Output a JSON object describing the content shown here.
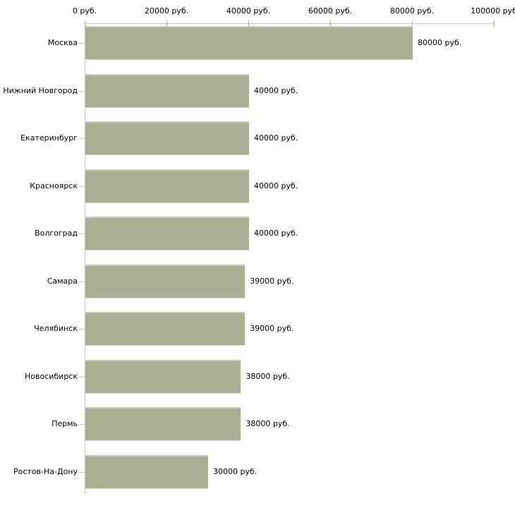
{
  "chart_data": {
    "type": "bar",
    "orientation": "horizontal",
    "title": "",
    "xlabel": "",
    "ylabel": "",
    "categories": [
      "Москва",
      "Нижний Новгород",
      "Екатеринбург",
      "Красноярск",
      "Волгоград",
      "Самара",
      "Челябинск",
      "Новосибирск",
      "Пермь",
      "Ростов-На-Дону"
    ],
    "values": [
      80000,
      40000,
      40000,
      40000,
      40000,
      39000,
      39000,
      38000,
      38000,
      30000
    ],
    "value_labels": [
      "80000 руб.",
      "40000 руб.",
      "40000 руб.",
      "40000 руб.",
      "40000 руб.",
      "39000 руб.",
      "39000 руб.",
      "38000 руб.",
      "38000 руб.",
      "30000 руб."
    ],
    "xlim": [
      0,
      100000
    ],
    "x_ticks": [
      0,
      20000,
      40000,
      60000,
      80000,
      100000
    ],
    "x_tick_labels": [
      "0 руб.",
      "20000 руб.",
      "40000 руб.",
      "60000 руб.",
      "80000 руб.",
      "100000 руб"
    ],
    "legend": "none",
    "grid": "off",
    "axis_position": "top",
    "colors": {
      "bar_fill": "#abb094",
      "bar_edge_top": "#c9cdb8",
      "bar_edge_bottom": "#d2d4c4",
      "axis_line": "#c6c6c6",
      "tick_mark": "#b5b088",
      "category_tick": "#cbc6aa",
      "text": "#000000"
    }
  }
}
